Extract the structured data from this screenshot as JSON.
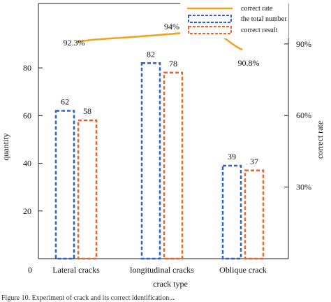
{
  "chart_data": {
    "type": "bar",
    "categories": [
      "Lateral cracks",
      "longitudinal cracks",
      "Oblique crack"
    ],
    "series": [
      {
        "name": "the total number",
        "values": [
          62,
          82,
          39
        ],
        "color": "#2d5fd6",
        "style": "dashed"
      },
      {
        "name": "correct result",
        "values": [
          58,
          78,
          37
        ],
        "color": "#e8642a",
        "style": "dashed"
      }
    ],
    "line_series": {
      "name": "correct rate",
      "values": [
        92.3,
        94,
        90.8
      ],
      "labels": [
        "92.3%",
        "94%",
        "90.8%"
      ],
      "color": "#f2a21b",
      "axis": "right"
    },
    "xlabel": "crack type",
    "ylabel": "quantity",
    "y2label": "correct rate",
    "ylim": [
      0,
      107
    ],
    "y_ticks": [
      "0",
      "20",
      "40",
      "60",
      "80"
    ],
    "y2_ticks": [
      "30%",
      "60%",
      "90%"
    ],
    "legend": "top-right",
    "grid": false
  },
  "caption": "Figure 10. Experiment of crack and its correct identification..."
}
